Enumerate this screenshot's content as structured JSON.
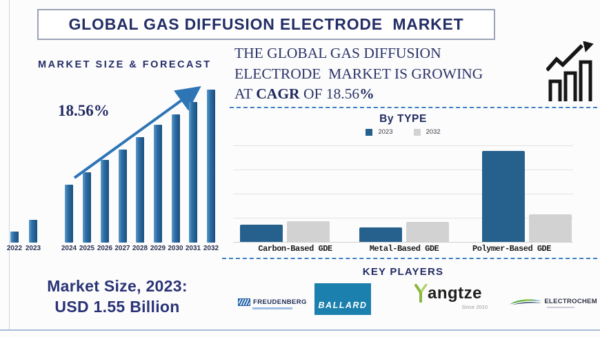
{
  "title_banner": {
    "text": "GLOBAL GAS DIFFUSION ELECTRODE  MARKET"
  },
  "left_panel": {
    "section_title": "MARKET SIZE & FORECAST",
    "cagr_annotation": "18.56%",
    "market_size_label": {
      "line1": "Market Size, 2023:",
      "line2": "USD 1.55 Billion"
    }
  },
  "right_panel": {
    "growth_statement": {
      "line1": "THE GLOBAL GAS DIFFUSION",
      "line2": "ELECTRODE  MARKET IS GROWING",
      "line3_prefix": "AT ",
      "line3_bold": "CAGR",
      "line3_mid": " OF 18.56",
      "line3_suffix_bold": "%"
    },
    "by_type_title": "By TYPE",
    "key_players": {
      "title": "KEY PLAYERS",
      "players": [
        {
          "name": "FREUDENBERG"
        },
        {
          "name": "BALLARD"
        },
        {
          "name_accent": "Y",
          "name_rest": "angtze",
          "subtitle": "Since 2010"
        },
        {
          "name": "ELECTROCHEM"
        }
      ]
    }
  },
  "chart_data": [
    {
      "id": "market_size_forecast",
      "type": "bar",
      "title": "MARKET SIZE & FORECAST",
      "categories": [
        "2022",
        "2023",
        "2024",
        "2025",
        "2026",
        "2027",
        "2028",
        "2029",
        "2030",
        "2031",
        "2032"
      ],
      "values_relative_pct": [
        7,
        15,
        38,
        46,
        54,
        61,
        69,
        77,
        84,
        92,
        100
      ],
      "annotation": "18.56%",
      "known_point": "2023 = USD 1.55 Billion",
      "bar_color": "#2e6fa7",
      "trend_arrow": true,
      "xlabel": "",
      "ylabel": "",
      "axis_values_shown": false,
      "note": "stylized forecast bars, no y-axis scale shown; gap between 2023 and 2024"
    },
    {
      "id": "by_type",
      "type": "bar",
      "title": "By TYPE",
      "categories": [
        "Carbon-Based GDE",
        "Metal-Based GDE",
        "Polymer-Based GDE"
      ],
      "series": [
        {
          "name": "2023",
          "color": "#26618e",
          "values_relative_pct": [
            19,
            16,
            100
          ]
        },
        {
          "name": "2032",
          "color": "#d2d2d2",
          "values_relative_pct": [
            23,
            22,
            30
          ]
        }
      ],
      "legend_position": "top",
      "grid": true,
      "axis_values_shown": false,
      "note": "relative heights; no y-axis scale shown"
    }
  ],
  "colors": {
    "navy_text": "#242e66",
    "forecast_bar_blue": "#2e6fa7",
    "type_bar_blue": "#26618e",
    "type_bar_gray": "#d2d2d2",
    "dashed_divider_blue": "#3f7ec6",
    "ballard_box_blue": "#1b80ad",
    "yangtze_green": "#8ab83c",
    "frame_line": "#a8bcd8"
  }
}
